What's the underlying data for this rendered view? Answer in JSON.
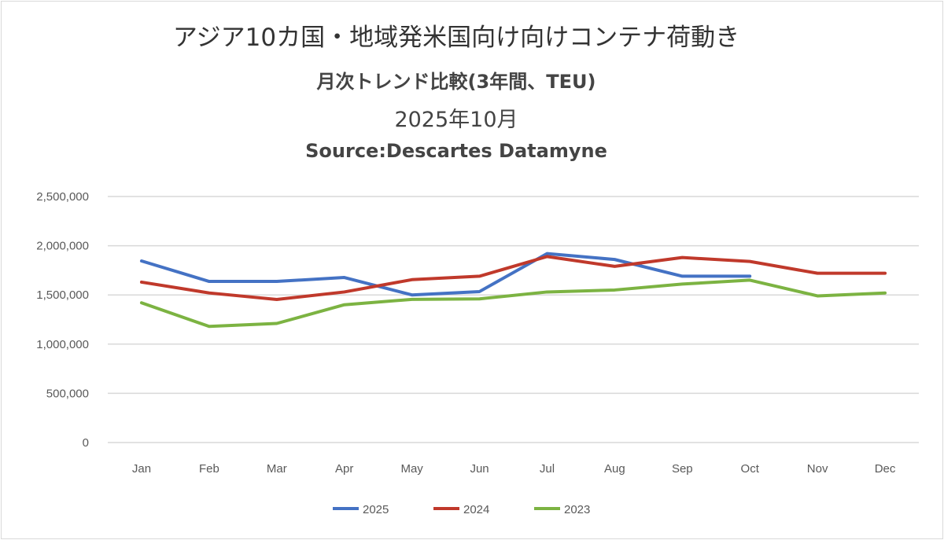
{
  "chart_data": {
    "type": "line",
    "title": "アジア10カ国・地域発米国向け向けコンテナ荷動き",
    "subtitle": "月次トレンド比較(3年間、TEU)",
    "date_line": "2025年10月",
    "source": "Source:Descartes Datamyne",
    "categories": [
      "Jan",
      "Feb",
      "Mar",
      "Apr",
      "May",
      "Jun",
      "Jul",
      "Aug",
      "Sep",
      "Oct",
      "Nov",
      "Dec"
    ],
    "yticks": [
      "0",
      "500,000",
      "1,000,000",
      "1,500,000",
      "2,000,000",
      "2,500,000"
    ],
    "ylim": [
      0,
      2500000
    ],
    "grid": true,
    "legend_position": "bottom",
    "series": [
      {
        "name": "2025",
        "color": "#4472c4",
        "values": [
          1845000,
          1637000,
          1637000,
          1677000,
          1500000,
          1534000,
          1920000,
          1860000,
          1690000,
          1690000,
          null,
          null
        ]
      },
      {
        "name": "2024",
        "color": "#c0392b",
        "values": [
          1630000,
          1520000,
          1454000,
          1530000,
          1655000,
          1690000,
          1890000,
          1790000,
          1880000,
          1840000,
          1720000,
          1720000
        ]
      },
      {
        "name": "2023",
        "color": "#7cb342",
        "values": [
          1420000,
          1180000,
          1210000,
          1400000,
          1455000,
          1460000,
          1530000,
          1550000,
          1610000,
          1650000,
          1490000,
          1520000
        ]
      }
    ]
  }
}
